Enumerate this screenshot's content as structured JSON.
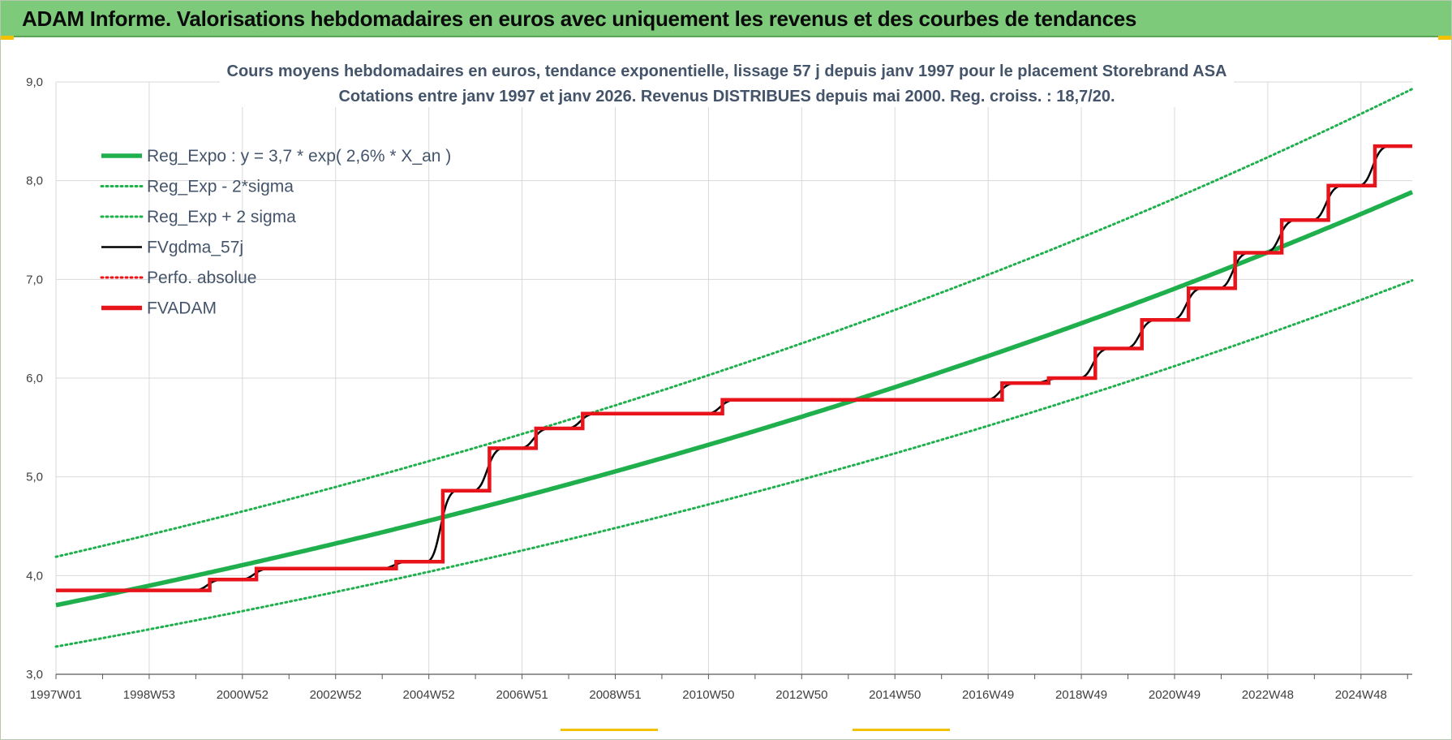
{
  "header": {
    "banner_title": "ADAM Informe. Valorisations hebdomadaires en euros avec uniquement les revenus et des courbes de tendances"
  },
  "colors": {
    "banner_bg": "#7dcb7a",
    "green": "#1fb04d",
    "red": "#e8141b",
    "black": "#000000",
    "grid": "#d9d9d9",
    "text": "#44546a"
  },
  "chart_data": {
    "type": "line",
    "title": "Cours moyens hebdomadaires en euros, tendance exponentielle, lissage 57 j depuis janv 1997  pour le placement Storebrand ASA",
    "subtitle": "Cotations entre janv 1997 et janv 2026. Revenus DISTRIBUES depuis mai 2000.  Reg. croiss. : 18,7/20.",
    "xlabel": "",
    "ylabel": "",
    "x_range": [
      1997.0,
      2026.1
    ],
    "ylim": [
      3.0,
      9.0
    ],
    "y_ticks": [
      "3,0",
      "4,0",
      "5,0",
      "6,0",
      "7,0",
      "8,0",
      "9,0"
    ],
    "x_ticks": [
      {
        "label": "1997W01",
        "year": 1997.0
      },
      {
        "label": "1998W53",
        "year": 1999.0
      },
      {
        "label": "2000W52",
        "year": 2001.0
      },
      {
        "label": "2002W52",
        "year": 2003.0
      },
      {
        "label": "2004W52",
        "year": 2005.0
      },
      {
        "label": "2006W51",
        "year": 2007.0
      },
      {
        "label": "2008W51",
        "year": 2009.0
      },
      {
        "label": "2010W50",
        "year": 2011.0
      },
      {
        "label": "2012W50",
        "year": 2013.0
      },
      {
        "label": "2014W50",
        "year": 2015.0
      },
      {
        "label": "2016W49",
        "year": 2017.0
      },
      {
        "label": "2018W49",
        "year": 2019.0
      },
      {
        "label": "2020W49",
        "year": 2021.0
      },
      {
        "label": "2022W48",
        "year": 2023.0
      },
      {
        "label": "2024W48",
        "year": 2025.0
      }
    ],
    "grid": true,
    "legend_position": "top-left",
    "series": [
      {
        "name": "Reg_Expo : y = 3,7 * exp( 2,6% *  X_an )",
        "kind": "exp",
        "a": 3.7,
        "rate": 0.026,
        "color": "#1fb04d",
        "style": "solid-thick"
      },
      {
        "name": "Reg_Exp - 2*sigma",
        "kind": "exp",
        "a": 3.28,
        "rate": 0.026,
        "color": "#1fb04d",
        "style": "dotted"
      },
      {
        "name": "Reg_Exp + 2 sigma",
        "kind": "exp",
        "a": 4.19,
        "rate": 0.026,
        "color": "#1fb04d",
        "style": "dotted"
      },
      {
        "name": "FVgdma_57j",
        "kind": "smooth-step",
        "color": "#000000",
        "style": "solid-thin"
      },
      {
        "name": "Perfo. absolue",
        "kind": "none",
        "color": "#e8141b",
        "style": "dotted"
      },
      {
        "name": "FVADAM",
        "kind": "step",
        "color": "#e8141b",
        "style": "solid-thick"
      }
    ],
    "fvadam_steps": [
      {
        "x": 1997.0,
        "y": 3.85
      },
      {
        "x": 2000.3,
        "y": 3.96
      },
      {
        "x": 2001.3,
        "y": 4.07
      },
      {
        "x": 2004.3,
        "y": 4.14
      },
      {
        "x": 2005.3,
        "y": 4.86
      },
      {
        "x": 2006.3,
        "y": 5.29
      },
      {
        "x": 2007.3,
        "y": 5.49
      },
      {
        "x": 2008.3,
        "y": 5.64
      },
      {
        "x": 2011.3,
        "y": 5.78
      },
      {
        "x": 2017.3,
        "y": 5.95
      },
      {
        "x": 2018.3,
        "y": 6.0
      },
      {
        "x": 2019.3,
        "y": 6.3
      },
      {
        "x": 2020.3,
        "y": 6.59
      },
      {
        "x": 2021.3,
        "y": 6.91
      },
      {
        "x": 2022.3,
        "y": 7.27
      },
      {
        "x": 2023.3,
        "y": 7.6
      },
      {
        "x": 2024.3,
        "y": 7.95
      },
      {
        "x": 2025.3,
        "y": 8.35
      }
    ],
    "fvadam_end_x": 2026.1
  }
}
